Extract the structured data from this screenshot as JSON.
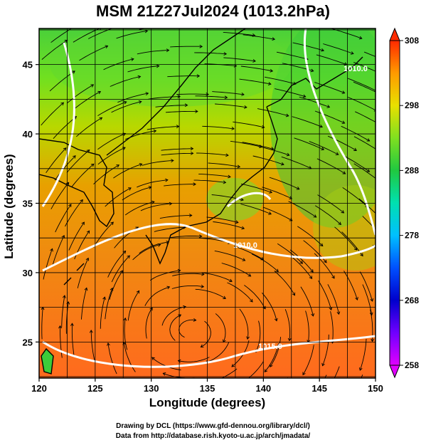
{
  "title": "MSM 21Z27Jul2024 (1013.2hPa)",
  "x_axis": {
    "label": "Longitude (degrees)",
    "min": 120,
    "max": 150,
    "ticks": [
      120,
      125,
      130,
      135,
      140,
      145,
      150
    ]
  },
  "y_axis": {
    "label": "Latitude  (degrees)",
    "min": 22.4,
    "max": 47.6,
    "ticks": [
      25,
      30,
      35,
      40,
      45
    ]
  },
  "colorbar": {
    "min": 258,
    "max": 308,
    "ticks": [
      308,
      298,
      288,
      278,
      268,
      258
    ]
  },
  "contours": {
    "labels": [
      "1010.0",
      "1015.0",
      "1010.0",
      "1010.0"
    ]
  },
  "credits": {
    "line1": "Drawing by DCL (https://www.gfd-dennou.org/library/dcl/)",
    "line2": "Data from http://database.rish.kyoto-u.ac.jp/arch/jmadata/"
  }
}
